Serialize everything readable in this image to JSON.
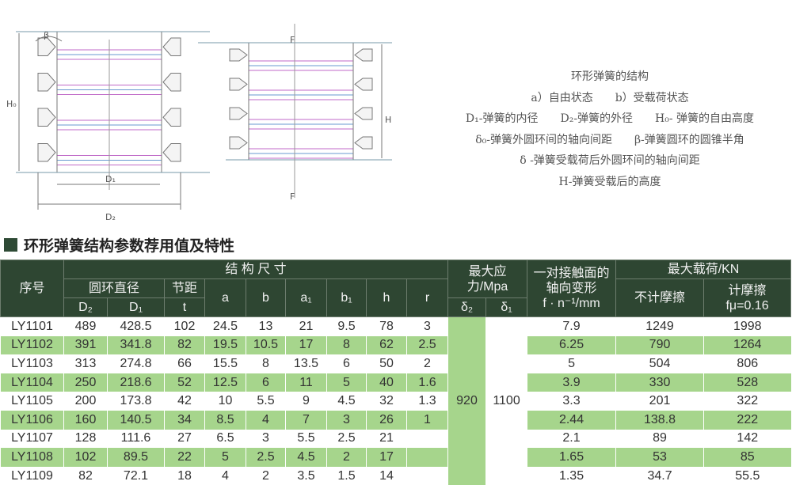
{
  "diagram": {
    "labels": {
      "beta": "β",
      "H0": "H₀",
      "D1": "D₁",
      "D2": "D₂",
      "F_top": "F",
      "F_bottom": "F",
      "H": "H"
    }
  },
  "legend": {
    "title": "环形弹簧的结构",
    "states": "a）自由状态　　b）受载荷状态",
    "line1": "D₁-弹簧的内径　　D₂-弹簧的外径　　H₀- 弹簧的自由高度",
    "line2": "δ₀-弹簧外圆环间的轴向间距　　β-弹簧圆环的圆锥半角",
    "line3": "δ -弹簧受载荷后外圆环间的轴向间距",
    "line4": "H-弹簧受载后的高度"
  },
  "section_title": "环形弹簧结构参数荐用值及特性",
  "table": {
    "headers": {
      "no": "序号",
      "structure": "结 构 尺 寸",
      "ring_diameter": "圆环直径",
      "pitch": "节距",
      "D2": "D₂",
      "D1": "D₁",
      "t": "t",
      "a": "a",
      "b": "b",
      "a1": "a₁",
      "b1": "b₁",
      "h": "h",
      "r": "r",
      "stress": "最大应力/Mpa",
      "delta2": "δ₂",
      "delta1": "δ₁",
      "deform": "一对接触面的轴向变形",
      "deform_unit": "f · n⁻¹/mm",
      "load": "最大载荷/KN",
      "no_friction": "不计摩擦",
      "friction": "计摩擦",
      "friction_coef": "fμ=0.16"
    },
    "stress_delta2": "920",
    "stress_delta1": "1100",
    "rows": [
      [
        "LY1101",
        "489",
        "428.5",
        "102",
        "24.5",
        "13",
        "21",
        "9.5",
        "78",
        "3",
        "7.9",
        "1249",
        "1998"
      ],
      [
        "LY1102",
        "391",
        "341.8",
        "82",
        "19.5",
        "10.5",
        "17",
        "8",
        "62",
        "2.5",
        "6.25",
        "790",
        "1264"
      ],
      [
        "LY1103",
        "313",
        "274.8",
        "66",
        "15.5",
        "8",
        "13.5",
        "6",
        "50",
        "2",
        "5",
        "504",
        "806"
      ],
      [
        "LY1104",
        "250",
        "218.6",
        "52",
        "12.5",
        "6",
        "11",
        "5",
        "40",
        "1.6",
        "3.9",
        "330",
        "528"
      ],
      [
        "LY1105",
        "200",
        "173.8",
        "42",
        "10",
        "5.5",
        "9",
        "4.5",
        "32",
        "1.3",
        "3.3",
        "201",
        "322"
      ],
      [
        "LY1106",
        "160",
        "140.5",
        "34",
        "8.5",
        "4",
        "7",
        "3",
        "26",
        "1",
        "2.44",
        "138.8",
        "222"
      ],
      [
        "LY1107",
        "128",
        "111.6",
        "27",
        "6.5",
        "3",
        "5.5",
        "2.5",
        "21",
        "",
        "2.1",
        "89",
        "142"
      ],
      [
        "LY1108",
        "102",
        "89.5",
        "22",
        "5",
        "2.5",
        "4.5",
        "2",
        "17",
        "",
        "1.65",
        "53",
        "85"
      ],
      [
        "LY1109",
        "82",
        "72.1",
        "18",
        "4",
        "2",
        "3.5",
        "1.5",
        "14",
        "",
        "1.35",
        "34.7",
        "55.5"
      ]
    ]
  },
  "colors": {
    "header": "#2e4632",
    "row_green": "#a6d58c"
  }
}
